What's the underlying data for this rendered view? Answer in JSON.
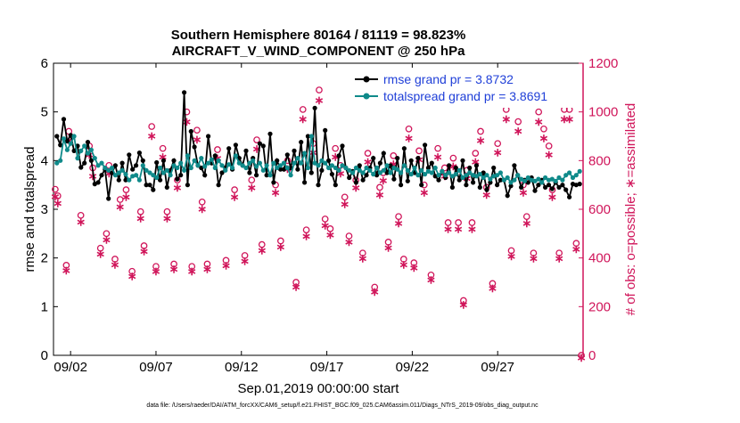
{
  "chart_data": {
    "type": "line",
    "title_line1": "Southern Hemisphere 80164 / 81119 = 98.823%",
    "title_line2": "AIRCRAFT_V_WIND_COMPONENT @ 250 hPa",
    "xlabel": "Sep.01,2019 00:00:00 start",
    "ylabel_left": "rmse and totalspread",
    "ylabel_right": "# of obs: o=possible; ∗=assimilated",
    "footer": "data file: /Users/raeder/DAI/ATM_forcXX/CAM6_setup/f.e21.FHIST_BGC.f09_025.CAM6assim.011/Diags_NTrS_2019-09/obs_diag_output.nc",
    "x_range_days": [
      0,
      31
    ],
    "x_ticks": [
      {
        "day": 1,
        "label": "09/02"
      },
      {
        "day": 6,
        "label": "09/07"
      },
      {
        "day": 11,
        "label": "09/12"
      },
      {
        "day": 16,
        "label": "09/17"
      },
      {
        "day": 21,
        "label": "09/22"
      },
      {
        "day": 26,
        "label": "09/27"
      }
    ],
    "ylim_left": [
      0,
      6
    ],
    "y_ticks_left": [
      "0",
      "1",
      "2",
      "3",
      "4",
      "5",
      "6"
    ],
    "ylim_right": [
      0,
      1200
    ],
    "y_ticks_right": [
      "0",
      "200",
      "400",
      "600",
      "800",
      "1000",
      "1200"
    ],
    "colors": {
      "rmse": "#000000",
      "spread": "#0f8a8a",
      "obs": "#d0155a",
      "legend_text": "#1f3fd8",
      "axis_right": "#d0155a"
    },
    "series": [
      {
        "name": "rmse grand pr = 3.8732",
        "key": "rmse",
        "values": [
          4.5,
          4.32,
          4.85,
          4.4,
          4.52,
          4.2,
          4.3,
          3.86,
          3.95,
          4.38,
          4.0,
          3.52,
          3.55,
          3.7,
          3.82,
          3.22,
          3.75,
          3.9,
          3.6,
          3.95,
          3.6,
          4.12,
          3.82,
          3.9,
          4.16,
          4.0,
          3.5,
          3.5,
          3.4,
          3.96,
          3.6,
          4.0,
          3.45,
          3.8,
          4.0,
          3.62,
          3.7,
          5.4,
          3.5,
          4.6,
          4.28,
          3.9,
          3.85,
          3.7,
          4.5,
          3.95,
          4.1,
          3.5,
          3.75,
          3.85,
          4.25,
          3.82,
          4.32,
          4.05,
          3.9,
          4.2,
          3.75,
          4.05,
          3.7,
          4.35,
          4.3,
          3.7,
          4.55,
          3.55,
          4.0,
          3.82,
          3.82,
          4.12,
          3.85,
          4.2,
          3.82,
          4.38,
          3.55,
          4.5,
          3.75,
          5.08,
          3.5,
          3.8,
          4.62,
          4.0,
          3.72,
          3.5,
          4.1,
          4.3,
          3.85,
          3.65,
          3.78,
          3.55,
          3.9,
          3.6,
          3.7,
          3.85,
          4.05,
          3.7,
          3.95,
          4.15,
          3.75,
          3.9,
          3.62,
          4.05,
          3.5,
          4.25,
          3.58,
          4.0,
          3.75,
          4.05,
          3.5,
          4.32,
          3.85,
          3.95,
          3.68,
          3.6,
          3.78,
          3.65,
          3.9,
          3.45,
          3.85,
          3.6,
          4.0,
          3.5,
          3.85,
          3.55,
          3.9,
          3.45,
          3.75,
          3.4,
          3.55,
          3.85,
          3.5,
          3.6,
          3.6,
          3.28,
          3.48,
          3.9,
          3.7,
          3.45,
          3.6,
          3.55,
          3.65,
          3.38,
          3.5,
          3.6,
          3.45,
          3.5,
          3.42,
          3.55,
          3.45,
          3.5,
          3.4,
          3.25,
          3.52,
          3.5,
          3.52
        ]
      },
      {
        "name": "totalspread grand pr = 3.8691",
        "key": "spread",
        "values": [
          3.95,
          4.0,
          4.45,
          4.22,
          4.35,
          4.5,
          4.05,
          4.2,
          4.3,
          4.15,
          4.22,
          4.05,
          3.9,
          3.95,
          3.85,
          3.8,
          3.85,
          3.7,
          3.75,
          3.8,
          3.72,
          3.6,
          3.68,
          3.7,
          3.6,
          3.9,
          3.8,
          3.75,
          3.7,
          3.65,
          3.85,
          3.75,
          3.8,
          3.7,
          3.9,
          3.85,
          3.95,
          3.8,
          4.1,
          3.85,
          4.0,
          3.9,
          4.05,
          3.88,
          3.95,
          4.02,
          3.85,
          4.0,
          3.9,
          3.8,
          3.92,
          3.85,
          4.1,
          3.95,
          3.9,
          3.85,
          3.95,
          4.0,
          3.88,
          3.95,
          3.8,
          3.9,
          3.7,
          3.95,
          3.85,
          3.9,
          3.95,
          3.85,
          3.7,
          3.95,
          4.05,
          3.95,
          4.15,
          3.85,
          4.5,
          3.95,
          3.9,
          4.0,
          3.95,
          3.85,
          3.9,
          3.85,
          3.8,
          3.9,
          3.85,
          3.8,
          3.75,
          3.85,
          3.8,
          3.75,
          3.85,
          3.8,
          3.72,
          3.85,
          3.75,
          3.8,
          3.9,
          3.75,
          3.85,
          3.82,
          3.75,
          3.9,
          3.8,
          3.72,
          3.85,
          3.7,
          3.8,
          3.72,
          3.78,
          3.75,
          3.85,
          3.7,
          3.78,
          3.7,
          3.75,
          3.68,
          3.72,
          3.8,
          3.65,
          3.7,
          3.75,
          3.7,
          3.68,
          3.72,
          3.65,
          3.7,
          3.62,
          3.68,
          3.7,
          3.75,
          3.6,
          3.65,
          3.55,
          3.6,
          3.7,
          3.62,
          3.58,
          3.65,
          3.6,
          3.58,
          3.62,
          3.55,
          3.65,
          3.6,
          3.62,
          3.58,
          3.65,
          3.6,
          3.7,
          3.75,
          3.65,
          3.7,
          3.78
        ]
      }
    ],
    "obs_possible": [
      {
        "day": 0.1,
        "count": 682
      },
      {
        "day": 0.25,
        "count": 655
      },
      {
        "day": 0.75,
        "count": 370
      },
      {
        "day": 0.9,
        "count": 920
      },
      {
        "day": 1.6,
        "count": 575
      },
      {
        "day": 2.1,
        "count": 860
      },
      {
        "day": 2.3,
        "count": 770
      },
      {
        "day": 2.75,
        "count": 440
      },
      {
        "day": 3.1,
        "count": 500
      },
      {
        "day": 3.25,
        "count": 780
      },
      {
        "day": 3.6,
        "count": 395
      },
      {
        "day": 3.9,
        "count": 640
      },
      {
        "day": 4.25,
        "count": 680
      },
      {
        "day": 4.6,
        "count": 345
      },
      {
        "day": 5.1,
        "count": 590
      },
      {
        "day": 5.3,
        "count": 450
      },
      {
        "day": 5.75,
        "count": 940
      },
      {
        "day": 6.0,
        "count": 365
      },
      {
        "day": 6.4,
        "count": 850
      },
      {
        "day": 6.65,
        "count": 590
      },
      {
        "day": 7.05,
        "count": 375
      },
      {
        "day": 7.25,
        "count": 720
      },
      {
        "day": 7.8,
        "count": 1000
      },
      {
        "day": 8.1,
        "count": 365
      },
      {
        "day": 8.4,
        "count": 925
      },
      {
        "day": 8.7,
        "count": 630
      },
      {
        "day": 9.0,
        "count": 375
      },
      {
        "day": 9.6,
        "count": 845
      },
      {
        "day": 10.1,
        "count": 390
      },
      {
        "day": 10.6,
        "count": 680
      },
      {
        "day": 11.2,
        "count": 410
      },
      {
        "day": 11.6,
        "count": 720
      },
      {
        "day": 11.9,
        "count": 885
      },
      {
        "day": 12.2,
        "count": 455
      },
      {
        "day": 13.0,
        "count": 700
      },
      {
        "day": 13.3,
        "count": 470
      },
      {
        "day": 13.7,
        "count": 800
      },
      {
        "day": 14.2,
        "count": 300
      },
      {
        "day": 14.6,
        "count": 1010
      },
      {
        "day": 14.8,
        "count": 515
      },
      {
        "day": 15.2,
        "count": 870
      },
      {
        "day": 15.55,
        "count": 1090
      },
      {
        "day": 15.9,
        "count": 560
      },
      {
        "day": 16.2,
        "count": 520
      },
      {
        "day": 16.5,
        "count": 850
      },
      {
        "day": 16.8,
        "count": 780
      },
      {
        "day": 17.05,
        "count": 650
      },
      {
        "day": 17.3,
        "count": 490
      },
      {
        "day": 17.7,
        "count": 720
      },
      {
        "day": 18.1,
        "count": 420
      },
      {
        "day": 18.4,
        "count": 830
      },
      {
        "day": 18.8,
        "count": 280
      },
      {
        "day": 19.1,
        "count": 690
      },
      {
        "day": 19.3,
        "count": 750
      },
      {
        "day": 19.6,
        "count": 465
      },
      {
        "day": 19.9,
        "count": 820
      },
      {
        "day": 20.2,
        "count": 570
      },
      {
        "day": 20.5,
        "count": 395
      },
      {
        "day": 20.8,
        "count": 930
      },
      {
        "day": 21.1,
        "count": 380
      },
      {
        "day": 21.4,
        "count": 840
      },
      {
        "day": 21.7,
        "count": 700
      },
      {
        "day": 22.1,
        "count": 330
      },
      {
        "day": 22.5,
        "count": 850
      },
      {
        "day": 22.9,
        "count": 770
      },
      {
        "day": 23.1,
        "count": 545
      },
      {
        "day": 23.4,
        "count": 810
      },
      {
        "day": 23.7,
        "count": 545
      },
      {
        "day": 24.0,
        "count": 225
      },
      {
        "day": 24.2,
        "count": 760
      },
      {
        "day": 24.5,
        "count": 545
      },
      {
        "day": 24.7,
        "count": 830
      },
      {
        "day": 25.0,
        "count": 920
      },
      {
        "day": 25.35,
        "count": 690
      },
      {
        "day": 25.7,
        "count": 295
      },
      {
        "day": 26.0,
        "count": 870
      },
      {
        "day": 26.5,
        "count": 1010
      },
      {
        "day": 26.8,
        "count": 430
      },
      {
        "day": 27.2,
        "count": 960
      },
      {
        "day": 27.5,
        "count": 700
      },
      {
        "day": 27.7,
        "count": 570
      },
      {
        "day": 28.1,
        "count": 420
      },
      {
        "day": 28.4,
        "count": 1000
      },
      {
        "day": 28.7,
        "count": 930
      },
      {
        "day": 29.0,
        "count": 860
      },
      {
        "day": 29.2,
        "count": 680
      },
      {
        "day": 29.6,
        "count": 420
      },
      {
        "day": 29.9,
        "count": 1010
      },
      {
        "day": 30.2,
        "count": 1010
      },
      {
        "day": 30.6,
        "count": 460
      },
      {
        "day": 30.9,
        "count": 0
      }
    ]
  }
}
